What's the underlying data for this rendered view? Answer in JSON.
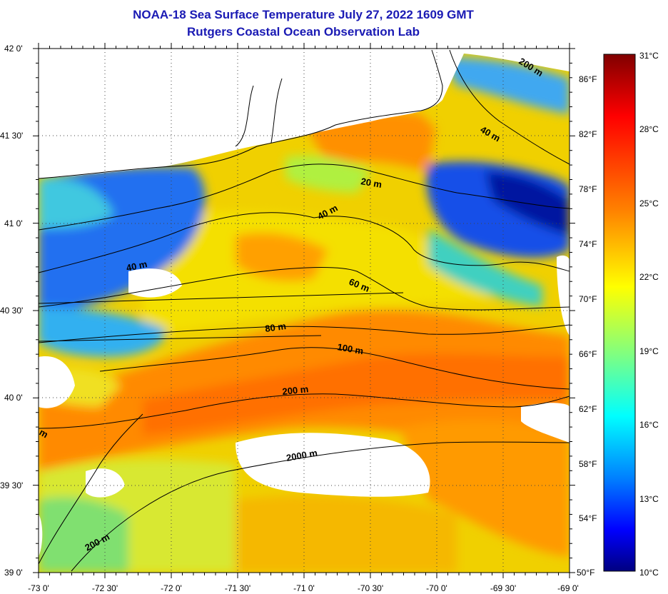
{
  "title": "NOAA-18 Sea Surface Temperature July 27, 2022 1609 GMT",
  "subtitle": "Rutgers Coastal Ocean Observation Lab",
  "lat_ticks": [
    "42 0'",
    "41 30'",
    "41 0'",
    "40 30'",
    "40 0'",
    "39 30'",
    "39 0'"
  ],
  "lon_ticks": [
    "-73 0'",
    "-72 30'",
    "-72 0'",
    "-71 30'",
    "-71 0'",
    "-70 30'",
    "-70 0'",
    "-69 30'",
    "-69 0'"
  ],
  "colorbar": {
    "celsius_ticks": [
      "31°C",
      "28°C",
      "25°C",
      "22°C",
      "19°C",
      "16°C",
      "13°C",
      "10°C"
    ],
    "fahrenheit_ticks": [
      "86°F",
      "82°F",
      "78°F",
      "74°F",
      "70°F",
      "66°F",
      "62°F",
      "58°F",
      "54°F",
      "50°F"
    ],
    "colors": [
      "#800000",
      "#ff0000",
      "#ff8000",
      "#ffff00",
      "#80ff80",
      "#00ffff",
      "#0080ff",
      "#0000ff",
      "#000080"
    ]
  },
  "contour_labels": {
    "c20": "20 m",
    "c40a": "40 m",
    "c40b": "40 m",
    "c40c": "40 m",
    "c60": "60 m",
    "c80": "80 m",
    "c100": "100 m",
    "c200a": "200 m",
    "c200b": "200 m",
    "c200c": "200 m",
    "c2000": "2000 m",
    "cedge": "m"
  }
}
